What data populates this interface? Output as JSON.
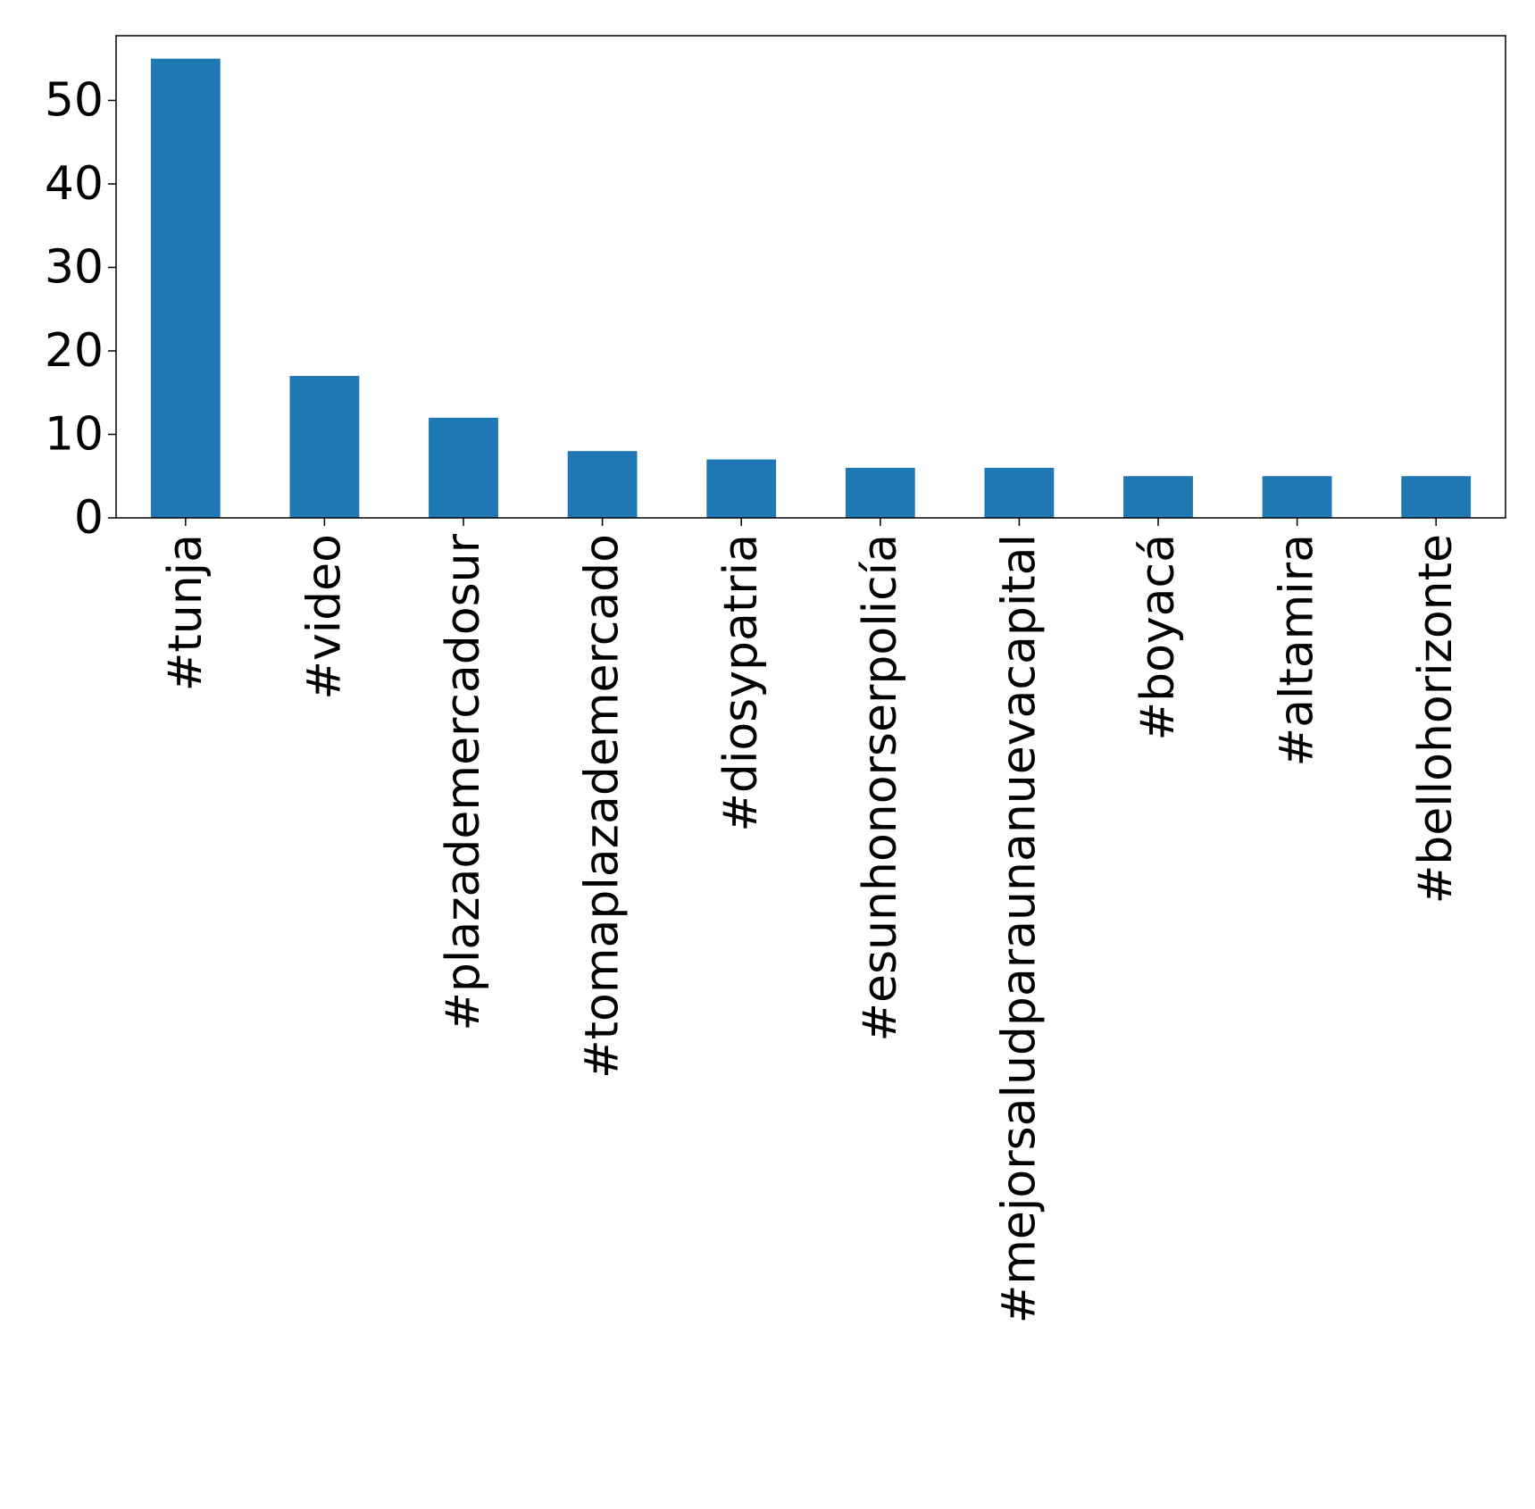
{
  "chart_data": {
    "type": "bar",
    "title": "",
    "xlabel": "",
    "ylabel": "",
    "categories": [
      "#tunja",
      "#video",
      "#plazademercadosur",
      "#tomaplazademercado",
      "#diosypatria",
      "#esunhonorserpolicía",
      "#mejorsaludparaunanuevacapital",
      "#boyacá",
      "#altamira",
      "#bellohorizonte"
    ],
    "values": [
      55,
      17,
      12,
      8,
      7,
      6,
      6,
      5,
      5,
      5
    ],
    "ylim": [
      0,
      57.75
    ],
    "yticks": [
      0,
      10,
      20,
      30,
      40,
      50
    ],
    "grid": false,
    "legend": "none",
    "colors": {
      "bar": "#1f77b4",
      "axis": "#000000",
      "text": "#000000",
      "background": "#ffffff"
    }
  }
}
